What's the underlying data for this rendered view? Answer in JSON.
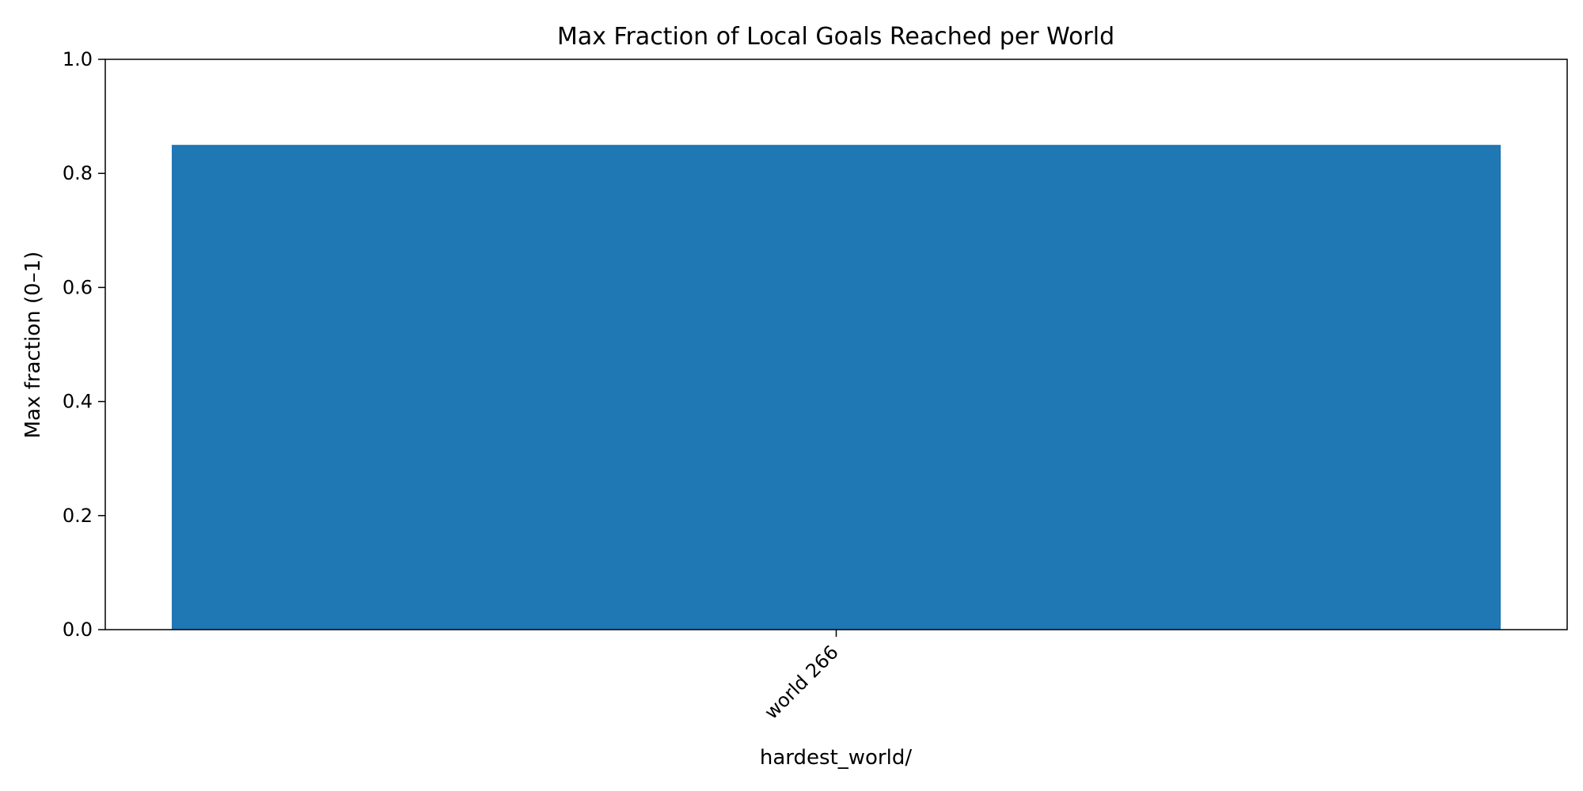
{
  "chart_data": {
    "type": "bar",
    "title": "Max Fraction of Local Goals Reached per World",
    "xlabel": "hardest_world/",
    "ylabel": "Max fraction (0–1)",
    "categories": [
      "world 266"
    ],
    "values": [
      0.85
    ],
    "ylim": [
      0,
      1
    ],
    "yticks": [
      "0.0",
      "0.2",
      "0.4",
      "0.6",
      "0.8",
      "1.0"
    ],
    "grid": false,
    "legend": "none",
    "bar_color": "#1f77b4"
  }
}
